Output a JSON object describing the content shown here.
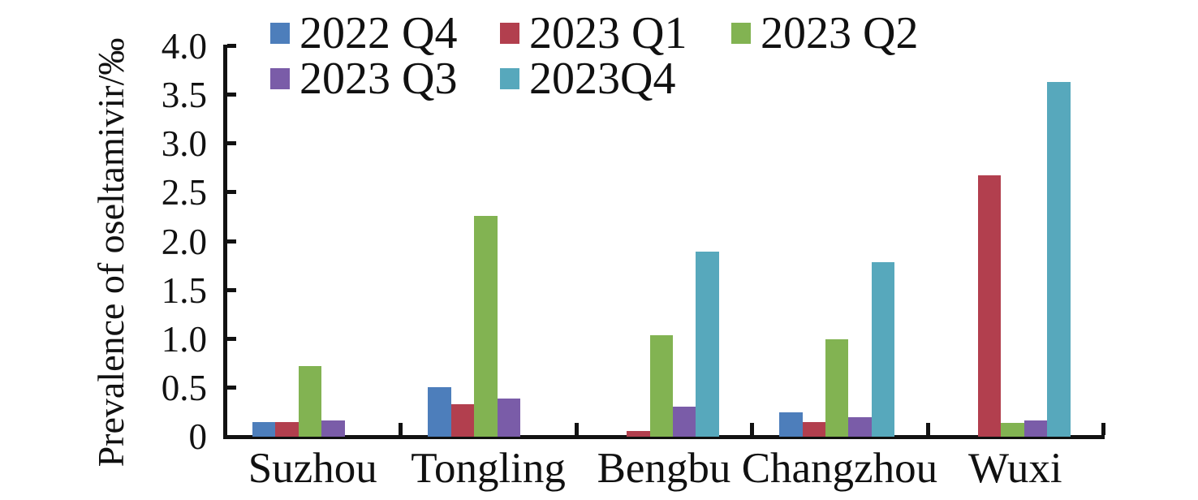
{
  "chart_data": {
    "type": "bar",
    "title": "",
    "xlabel": "",
    "ylabel": "Prevalence of oseltamivir/‰",
    "ylim": [
      0,
      4.0
    ],
    "yticks": [
      4.0,
      3.5,
      3.0,
      2.5,
      2.0,
      1.5,
      1.0,
      0.5,
      0
    ],
    "ytick_labels": [
      "4.0",
      "3.5",
      "3.0",
      "2.5",
      "2.0",
      "1.5",
      "1.0",
      "0.5",
      "0"
    ],
    "grid": false,
    "legend_position": "top",
    "categories": [
      "Suzhou",
      "Tongling",
      "Bengbu",
      "Changzhou",
      "Wuxi"
    ],
    "series": [
      {
        "name": "2022 Q4",
        "color": "#4D7EBB",
        "values": [
          0.15,
          0.51,
          0,
          0.25,
          0
        ]
      },
      {
        "name": "2023 Q1",
        "color": "#B23F4E",
        "values": [
          0.15,
          0.33,
          0.06,
          0.15,
          2.68
        ]
      },
      {
        "name": "2023 Q2",
        "color": "#82B352",
        "values": [
          0.72,
          2.26,
          1.04,
          1.0,
          0.14
        ]
      },
      {
        "name": "2023 Q3",
        "color": "#7A5CA8",
        "values": [
          0.17,
          0.39,
          0.31,
          0.2,
          0.17
        ]
      },
      {
        "name": "2023Q4",
        "color": "#57A8BC",
        "values": [
          0,
          0,
          1.9,
          1.79,
          3.63
        ]
      }
    ],
    "colors": {
      "axis": "#111111",
      "text": "#111111",
      "background": "#ffffff"
    }
  }
}
